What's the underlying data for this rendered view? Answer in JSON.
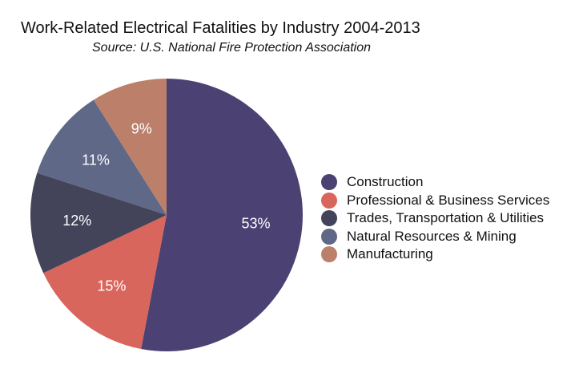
{
  "chart_data": {
    "type": "pie",
    "title": "Work-Related Electrical Fatalities by Industry 2004-2013",
    "subtitle": "Source: U.S. National Fire Protection Association",
    "categories": [
      "Construction",
      "Professional & Business Services",
      "Trades, Transportation & Utilities",
      "Natural Resources & Mining",
      "Manufacturing"
    ],
    "values": [
      53,
      15,
      12,
      11,
      9
    ],
    "data_labels": [
      "53%",
      "15%",
      "12%",
      "11%",
      "9%"
    ],
    "colors": [
      "#4b4273",
      "#d9665c",
      "#43435a",
      "#5f6886",
      "#bb7f6a"
    ],
    "start": "top, clockwise",
    "legend_position": "right"
  }
}
